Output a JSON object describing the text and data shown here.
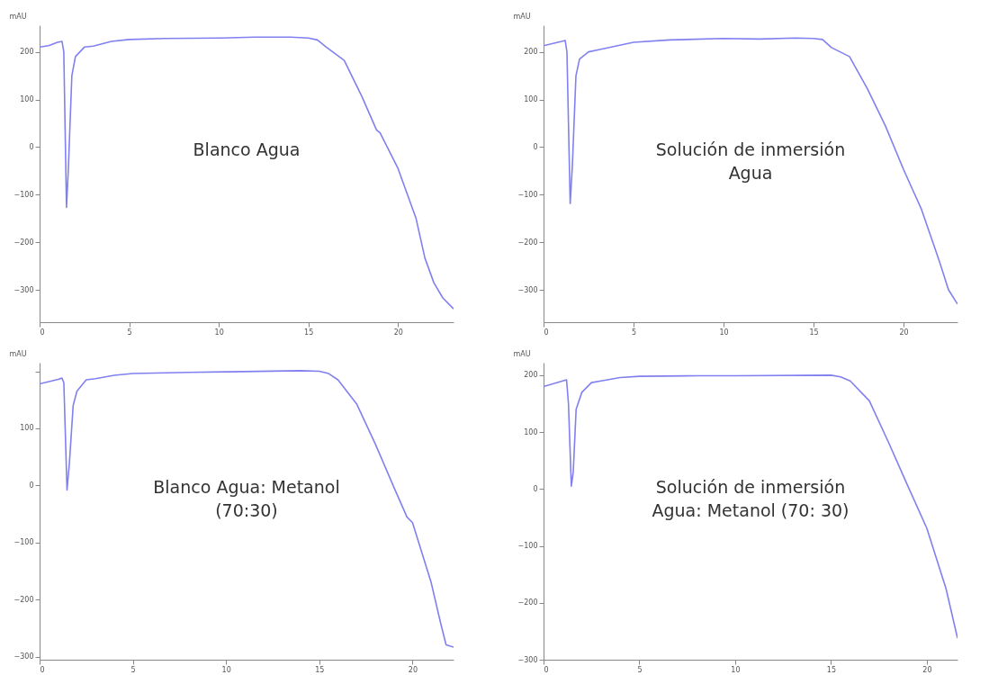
{
  "chart_data": [
    {
      "type": "line",
      "ylabel": "mAU",
      "annotations": [
        "Blanco Agua"
      ],
      "xlim": [
        0,
        23.1
      ],
      "xticks": [
        0,
        5,
        10,
        15,
        20
      ],
      "ylim": [
        -368,
        256
      ],
      "yticks": [
        -300,
        -200,
        -100,
        0,
        100,
        200
      ],
      "grid": false,
      "x": [
        0,
        0.5,
        1,
        1.25,
        1.35,
        1.5,
        1.6,
        1.8,
        2,
        2.5,
        3,
        4,
        5,
        7,
        10,
        12,
        14,
        15,
        15.5,
        16,
        17,
        18,
        18.8,
        19,
        20,
        21,
        21.5,
        22,
        22.5,
        23.1
      ],
      "series": [
        {
          "color": "#8080f0",
          "values": [
            210,
            213,
            220,
            222,
            200,
            -127,
            -50,
            150,
            190,
            210,
            212,
            222,
            226,
            228,
            229,
            231,
            231,
            229,
            225,
            210,
            182,
            105,
            36,
            30,
            -45,
            -149,
            -233,
            -285,
            -317,
            -340
          ]
        }
      ]
    },
    {
      "type": "line",
      "ylabel": "mAU",
      "annotations": [
        "Solución de inmersión\nAgua"
      ],
      "xlim": [
        0,
        23
      ],
      "xticks": [
        0,
        5,
        10,
        15,
        20
      ],
      "ylim": [
        -368,
        256
      ],
      "yticks": [
        -300,
        -200,
        -100,
        0,
        100,
        200
      ],
      "grid": false,
      "x": [
        0,
        1,
        1.2,
        1.3,
        1.48,
        1.6,
        1.8,
        2,
        2.5,
        3,
        4,
        5,
        7,
        10,
        12,
        14,
        15,
        15.5,
        16,
        17,
        18,
        19,
        20,
        21,
        22,
        22.5,
        23
      ],
      "series": [
        {
          "color": "#8080f0",
          "values": [
            213,
            222,
            224,
            200,
            -119,
            -40,
            150,
            185,
            200,
            204,
            212,
            220,
            225,
            228,
            227,
            229,
            228,
            226,
            209,
            190,
            122,
            44,
            -47,
            -131,
            -241,
            -300,
            -330
          ]
        }
      ]
    },
    {
      "type": "line",
      "ylabel": "mAU",
      "annotations": [
        "Blanco Agua: Metanol\n(70:30)"
      ],
      "xlim": [
        0,
        22.2
      ],
      "xticks": [
        0,
        5,
        10,
        15,
        20
      ],
      "ylim": [
        -305,
        215
      ],
      "yticks": [
        -300,
        -200,
        -100,
        0,
        100,
        {
          "value": 200,
          "label": null
        }
      ],
      "grid": false,
      "x": [
        0,
        1,
        1.2,
        1.3,
        1.47,
        1.6,
        1.8,
        2,
        2.5,
        3,
        4,
        5,
        8,
        10,
        14,
        15,
        15.5,
        16,
        17,
        18,
        19,
        19.7,
        20,
        21,
        21.5,
        21.8,
        22.2
      ],
      "series": [
        {
          "color": "#8080f0",
          "values": [
            178,
            186,
            188,
            180,
            -8,
            40,
            140,
            165,
            185,
            187,
            193,
            196,
            198,
            199,
            201,
            200,
            196,
            185,
            143,
            73,
            -3,
            -55,
            -65,
            -170,
            -240,
            -279,
            -283
          ]
        }
      ]
    },
    {
      "type": "line",
      "ylabel": "mAU",
      "annotations": [
        "Solución de inmersión\nAgua: Metanol (70: 30)"
      ],
      "xlim": [
        0,
        21.6
      ],
      "xticks": [
        0,
        5,
        10,
        15,
        20
      ],
      "ylim": [
        -300,
        222
      ],
      "yticks": [
        -300,
        -200,
        -100,
        0,
        100,
        200
      ],
      "grid": false,
      "x": [
        0,
        1,
        1.2,
        1.3,
        1.45,
        1.55,
        1.7,
        2,
        2.5,
        3,
        4,
        5,
        8,
        10,
        15,
        15.5,
        16,
        17,
        18,
        19,
        20,
        21,
        21.6
      ],
      "series": [
        {
          "color": "#8080f0",
          "values": [
            180,
            190,
            192,
            150,
            5,
            30,
            140,
            170,
            187,
            190,
            196,
            198,
            199,
            199,
            200,
            197,
            190,
            155,
            82,
            6,
            -69,
            -175,
            -262
          ]
        }
      ]
    }
  ]
}
